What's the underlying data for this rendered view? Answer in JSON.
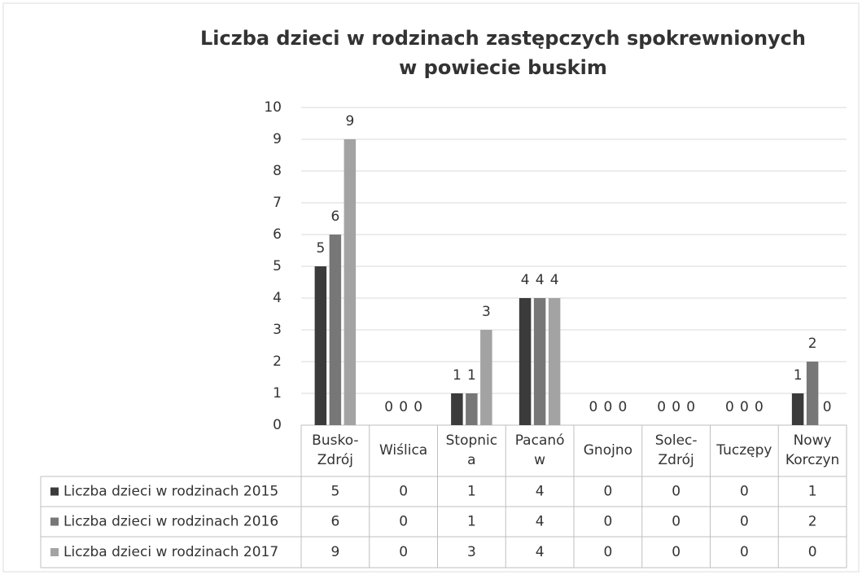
{
  "chart_data": {
    "type": "bar",
    "title": [
      "Liczba dzieci w rodzinach zastępczych spokrewnionych",
      "w powiecie buskim"
    ],
    "categories": [
      [
        "Busko-",
        "Zdrój"
      ],
      [
        "Wiślica"
      ],
      [
        "Stopnic",
        "a"
      ],
      [
        "Pacanó",
        "w"
      ],
      [
        "Gnojno"
      ],
      [
        "Solec-",
        "Zdrój"
      ],
      [
        "Tuczępy"
      ],
      [
        "Nowy",
        "Korczyn"
      ]
    ],
    "series": [
      {
        "name": "Liczba dzieci w rodzinach 2015",
        "color": "#3b3b3b",
        "values": [
          5,
          0,
          1,
          4,
          0,
          0,
          0,
          1
        ]
      },
      {
        "name": "Liczba dzieci w rodzinach 2016",
        "color": "#777777",
        "values": [
          6,
          0,
          1,
          4,
          0,
          0,
          0,
          2
        ]
      },
      {
        "name": "Liczba dzieci w rodzinach 2017",
        "color": "#a3a3a3",
        "values": [
          9,
          0,
          3,
          4,
          0,
          0,
          0,
          0
        ]
      }
    ],
    "ylim": [
      0,
      10
    ],
    "yticks": [
      0,
      1,
      2,
      3,
      4,
      5,
      6,
      7,
      8,
      9,
      10
    ],
    "grid": true,
    "data_table": true
  }
}
